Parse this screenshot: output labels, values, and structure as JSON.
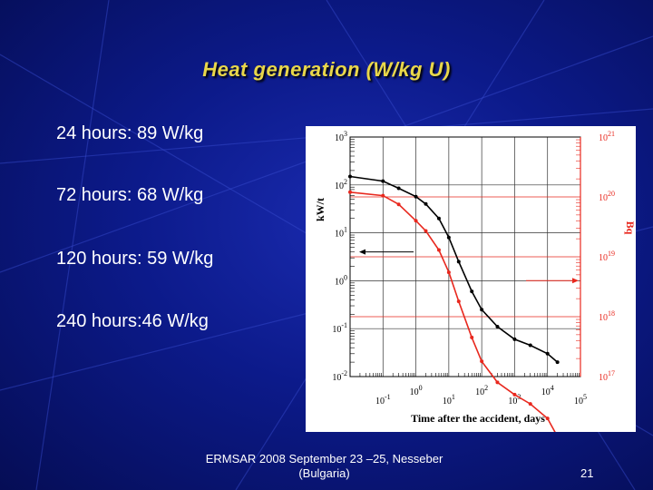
{
  "slide": {
    "title": "Heat generation (W/kg U)",
    "bullets": [
      "24 hours: 89 W/kg",
      "72 hours: 68 W/kg",
      "120 hours: 59 W/kg",
      "240 hours:46 W/kg"
    ],
    "footer_line1": "ERMSAR 2008  September 23 –25, Nesseber",
    "footer_line2": "(Bulgaria)",
    "page_number": "21"
  },
  "chart_data": {
    "type": "line",
    "xlabel": "Time after the accident, days",
    "ylabel_left": "kW/t",
    "ylabel_right": "Bq",
    "x_scale": "log",
    "y_scale": "log",
    "x_ticks": [
      {
        "base": "10",
        "exp": "-1",
        "value": 0.1
      },
      {
        "base": "10",
        "exp": "0",
        "value": 1
      },
      {
        "base": "10",
        "exp": "1",
        "value": 10
      },
      {
        "base": "10",
        "exp": "2",
        "value": 100
      },
      {
        "base": "10",
        "exp": "3",
        "value": 1000
      },
      {
        "base": "10",
        "exp": "4",
        "value": 10000
      },
      {
        "base": "10",
        "exp": "5",
        "value": 100000
      }
    ],
    "y_ticks_left": [
      {
        "base": "10",
        "exp": "3",
        "value": 1000
      },
      {
        "base": "10",
        "exp": "2",
        "value": 100
      },
      {
        "base": "10",
        "exp": "1",
        "value": 10
      },
      {
        "base": "10",
        "exp": "0",
        "value": 1
      },
      {
        "base": "10",
        "exp": "-1",
        "value": 0.1
      },
      {
        "base": "10",
        "exp": "-2",
        "value": 0.01
      }
    ],
    "y_ticks_right": [
      {
        "base": "10",
        "exp": "21",
        "value": 1e+21
      },
      {
        "base": "10",
        "exp": "20",
        "value": 1e+20
      },
      {
        "base": "10",
        "exp": "19",
        "value": 1e+19
      },
      {
        "base": "10",
        "exp": "18",
        "value": 1e+18
      },
      {
        "base": "10",
        "exp": "17",
        "value": 1e+17
      }
    ],
    "xlim": [
      0.01,
      100000
    ],
    "ylim_left": [
      0.01,
      1000
    ],
    "ylim_right": [
      1e+17,
      1e+21
    ],
    "series": [
      {
        "axis": "left",
        "color": "#000000",
        "x": [
          0.01,
          0.1,
          0.3,
          1,
          2,
          5,
          10,
          20,
          50,
          100,
          300,
          1000,
          3000,
          10000,
          20000
        ],
        "y": [
          150,
          120,
          85,
          57,
          40,
          20,
          8,
          2.5,
          0.6,
          0.25,
          0.11,
          0.06,
          0.045,
          0.03,
          0.02
        ]
      },
      {
        "axis": "right",
        "color": "#e8281e",
        "x": [
          0.01,
          0.1,
          0.3,
          1,
          2,
          5,
          10,
          20,
          50,
          100,
          300,
          1000,
          3000,
          10000,
          20000
        ],
        "y": [
          1.2e+20,
          1.05e+20,
          7.5e+19,
          4e+19,
          2.7e+19,
          1.3e+19,
          5.5e+18,
          1.8e+18,
          4.5e+17,
          1.8e+17,
          8e+16,
          5e+16,
          3.5e+16,
          2e+16,
          1e+16
        ]
      }
    ],
    "annotations": [
      {
        "type": "arrow",
        "direction": "left",
        "color": "#000000",
        "y_left": 4
      },
      {
        "type": "arrow",
        "direction": "right",
        "color": "#e8281e",
        "y_right": 4e+18
      }
    ]
  },
  "colors": {
    "title": "#e9d74a",
    "text": "#ffffff",
    "background": "#0c1a8a",
    "red_axis": "#e8281e"
  }
}
